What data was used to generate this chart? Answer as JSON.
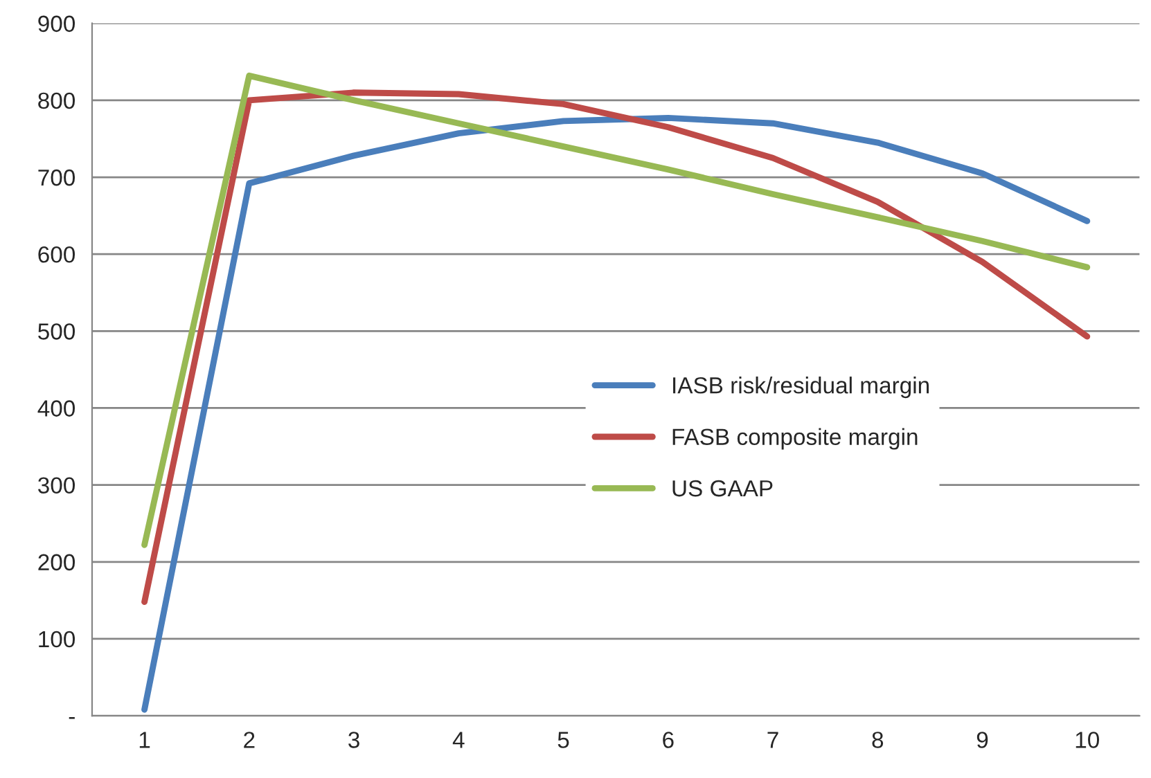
{
  "chart_data": {
    "type": "line",
    "categories": [
      "1",
      "2",
      "3",
      "4",
      "5",
      "6",
      "7",
      "8",
      "9",
      "10"
    ],
    "series": [
      {
        "name": "IASB risk/residual margin",
        "color": "#4a7ebb",
        "values": [
          8,
          692,
          728,
          757,
          773,
          777,
          770,
          745,
          705,
          643
        ]
      },
      {
        "name": "FASB composite margin",
        "color": "#be4b48",
        "values": [
          148,
          800,
          810,
          808,
          795,
          765,
          725,
          668,
          590,
          493
        ]
      },
      {
        "name": "US GAAP",
        "color": "#98b954",
        "values": [
          222,
          832,
          800,
          770,
          740,
          710,
          678,
          648,
          617,
          583
        ]
      }
    ],
    "ylim": [
      0,
      900
    ],
    "yticks": [
      {
        "value": 0,
        "label": "-"
      },
      100,
      200,
      300,
      400,
      500,
      600,
      700,
      800,
      900
    ],
    "grid": "y",
    "legend": "lower right",
    "marker": "none",
    "line_style": "solid"
  }
}
